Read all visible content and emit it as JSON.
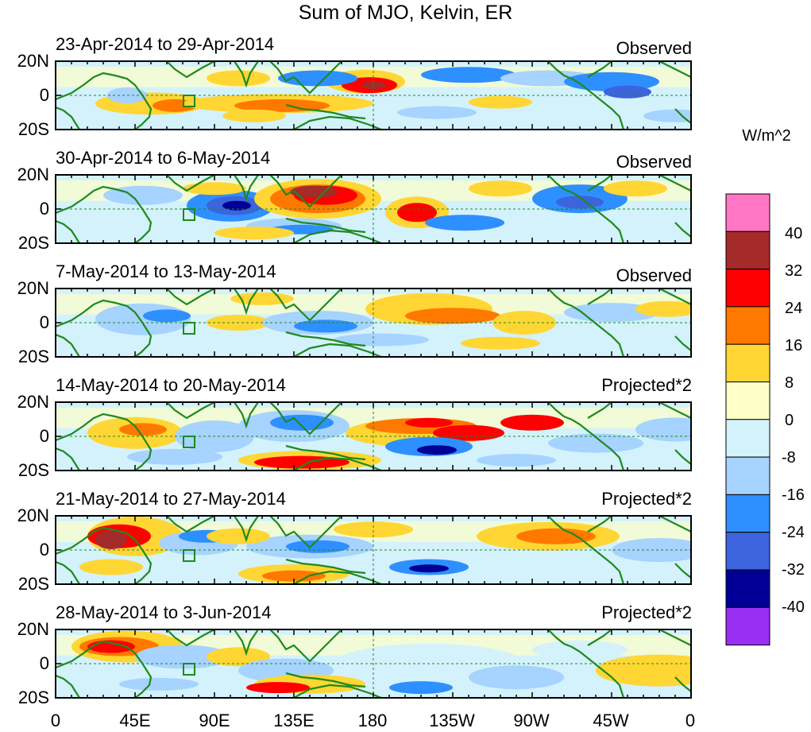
{
  "title": "Sum of MJO, Kelvin, ER",
  "panels": [
    {
      "date_range": "23-Apr-2014 to 29-Apr-2014",
      "status": "Observed"
    },
    {
      "date_range": "30-Apr-2014 to 6-May-2014",
      "status": "Observed"
    },
    {
      "date_range": "7-May-2014 to 13-May-2014",
      "status": "Observed"
    },
    {
      "date_range": "14-May-2014 to 20-May-2014",
      "status": "Projected*2"
    },
    {
      "date_range": "21-May-2014 to 27-May-2014",
      "status": "Projected*2"
    },
    {
      "date_range": "28-May-2014 to 3-Jun-2014",
      "status": "Projected*2"
    }
  ],
  "lat_labels": [
    "20N",
    "0",
    "20S"
  ],
  "lon_labels": [
    "0",
    "45E",
    "90E",
    "135E",
    "180",
    "135W",
    "90W",
    "45W",
    "0"
  ],
  "colorbar": {
    "units": "W/m^2",
    "labels": [
      "40",
      "32",
      "24",
      "16",
      "8",
      "0",
      "-8",
      "-16",
      "-24",
      "-32",
      "-40"
    ],
    "colors": [
      "#ff77c4",
      "#a52a2a",
      "#ff0000",
      "#ff7800",
      "#ffd633",
      "#ffffc8",
      "#d3f2fb",
      "#a6d3ff",
      "#2e8fff",
      "#3c64dc",
      "#000096",
      "#9a2ef2"
    ]
  },
  "colors": {
    "coast": "#1e8a1e",
    "equator": "#1e8a1e"
  }
}
